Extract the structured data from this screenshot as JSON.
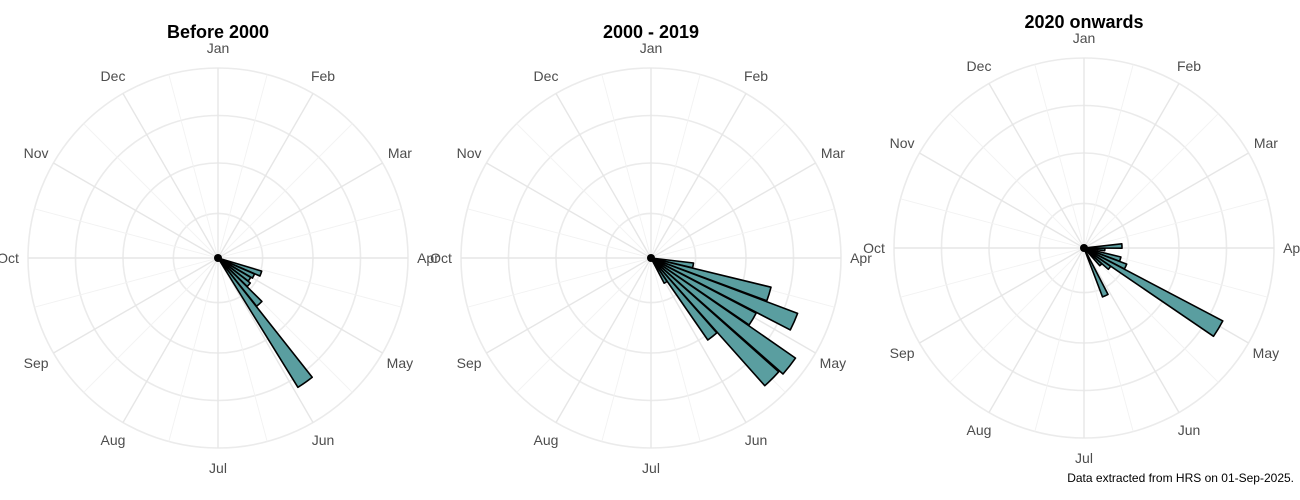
{
  "chart_data": [
    {
      "type": "polar-bar",
      "title": "Before 2000",
      "months": [
        "Jan",
        "Feb",
        "Mar",
        "Apr",
        "May",
        "Jun",
        "Jul",
        "Aug",
        "Sep",
        "Oct",
        "Nov",
        "Dec"
      ],
      "bins": [
        {
          "angle_deg": 110,
          "value": 0.48
        },
        {
          "angle_deg": 117,
          "value": 0.42
        },
        {
          "angle_deg": 124,
          "value": 0.4
        },
        {
          "angle_deg": 131,
          "value": 0.43
        },
        {
          "angle_deg": 138,
          "value": 0.65
        },
        {
          "angle_deg": 145,
          "value": 1.6
        }
      ],
      "fill": "#5a9ea0",
      "stroke": "#000000"
    },
    {
      "type": "polar-bar",
      "title": "2000 - 2019",
      "months": [
        "Jan",
        "Feb",
        "Mar",
        "Apr",
        "May",
        "Jun",
        "Jul",
        "Aug",
        "Sep",
        "Oct",
        "Nov",
        "Dec"
      ],
      "bins": [
        {
          "angle_deg": 100,
          "value": 0.45
        },
        {
          "angle_deg": 107,
          "value": 1.3
        },
        {
          "angle_deg": 114,
          "value": 1.65
        },
        {
          "angle_deg": 121,
          "value": 1.25
        },
        {
          "angle_deg": 128,
          "value": 1.85
        },
        {
          "angle_deg": 135,
          "value": 1.8
        },
        {
          "angle_deg": 142,
          "value": 1.05
        },
        {
          "angle_deg": 149,
          "value": 0.3
        }
      ],
      "fill": "#5a9ea0",
      "stroke": "#000000"
    },
    {
      "type": "polar-bar",
      "title": "2020 onwards",
      "months": [
        "Jan",
        "Feb",
        "Mar",
        "Apr",
        "May",
        "Jun",
        "Jul",
        "Aug",
        "Sep",
        "Oct",
        "Nov",
        "Dec"
      ],
      "bins": [
        {
          "angle_deg": 87,
          "value": 0.4
        },
        {
          "angle_deg": 94,
          "value": 0.22
        },
        {
          "angle_deg": 107,
          "value": 0.4
        },
        {
          "angle_deg": 114,
          "value": 0.48
        },
        {
          "angle_deg": 121,
          "value": 1.65
        },
        {
          "angle_deg": 128,
          "value": 0.34
        },
        {
          "angle_deg": 135,
          "value": 0.25
        },
        {
          "angle_deg": 156,
          "value": 0.55
        }
      ],
      "fill": "#5a9ea0",
      "stroke": "#000000"
    }
  ],
  "caption": "Data extracted from HRS on 01-Sep-2025."
}
